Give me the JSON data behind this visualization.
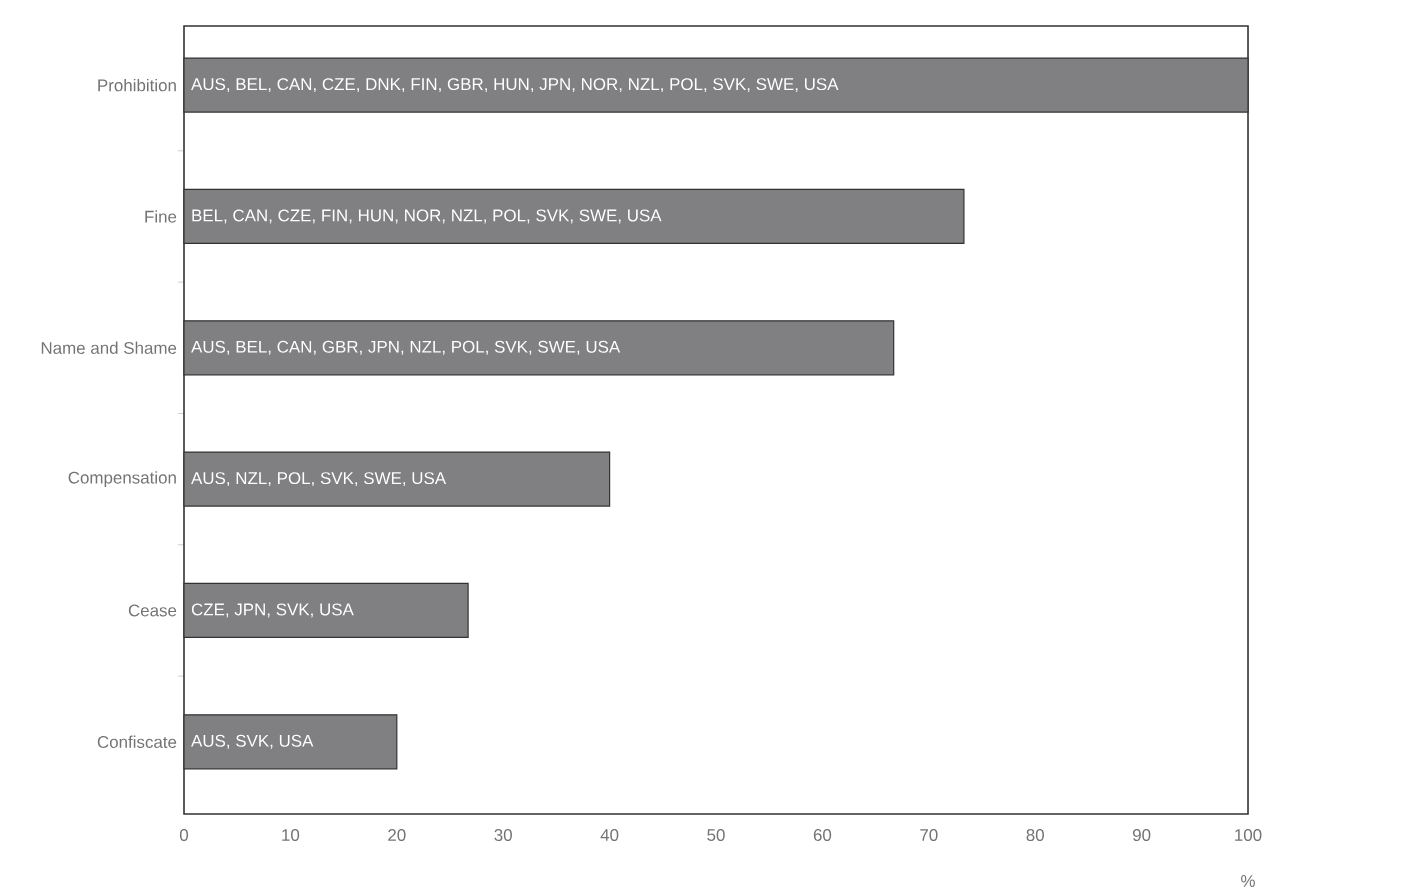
{
  "chart_data": {
    "type": "bar",
    "orientation": "horizontal",
    "categories": [
      "Prohibition",
      "Fine",
      "Name and Shame",
      "Compensation",
      "Cease",
      "Confiscate"
    ],
    "values": [
      100,
      73.3,
      66.7,
      40,
      26.7,
      20
    ],
    "value_labels": [
      "AUS, BEL, CAN, CZE, DNK, FIN, GBR, HUN, JPN, NOR, NZL, POL, SVK, SWE, USA",
      "BEL, CAN, CZE, FIN, HUN, NOR, NZL, POL, SVK, SWE, USA",
      "AUS, BEL, CAN, GBR, JPN, NZL, POL, SVK, SWE, USA",
      "AUS, NZL, POL, SVK, SWE, USA",
      "CZE, JPN, SVK, USA",
      "AUS, SVK, USA"
    ],
    "color": "#808083",
    "xlabel": "%",
    "xlim": [
      0,
      100
    ],
    "xticks": [
      0,
      10,
      20,
      30,
      40,
      50,
      60,
      70,
      80,
      90,
      100
    ],
    "grid": false
  }
}
